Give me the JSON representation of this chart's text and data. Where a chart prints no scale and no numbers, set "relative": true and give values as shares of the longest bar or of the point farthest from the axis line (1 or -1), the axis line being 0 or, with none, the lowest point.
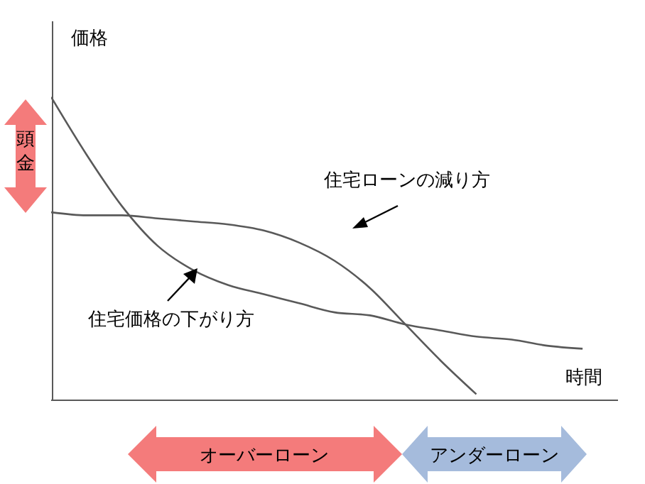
{
  "chart_data": {
    "type": "line",
    "relative": true,
    "ylabel": "価格",
    "xlabel": "時間",
    "marker": "none",
    "line_style": "solid",
    "categories": [
      null,
      null,
      null,
      null,
      null,
      null,
      null,
      null,
      null,
      null,
      null,
      null,
      null,
      null,
      null,
      null
    ],
    "series": [
      {
        "color": "#595959",
        "values": [
          1,
          0.81,
          0.64,
          0.51,
          0.43,
          0.38,
          0.35,
          0.32,
          0.29,
          0.28,
          0.25,
          0.23,
          0.21,
          0.2,
          0.18,
          0.17
        ]
      },
      {
        "color": "#595959",
        "values": [
          0.62,
          0.61,
          0.61,
          0.6,
          0.59,
          0.58,
          0.56,
          0.52,
          0.46,
          0.37,
          0.25,
          0.13,
          0.02,
          null,
          null,
          null
        ]
      }
    ],
    "annotations": [
      "頭金",
      "住宅ローンの減り方",
      "住宅価格の下がり方",
      "オーバーローン",
      "アンダーローン"
    ]
  }
}
